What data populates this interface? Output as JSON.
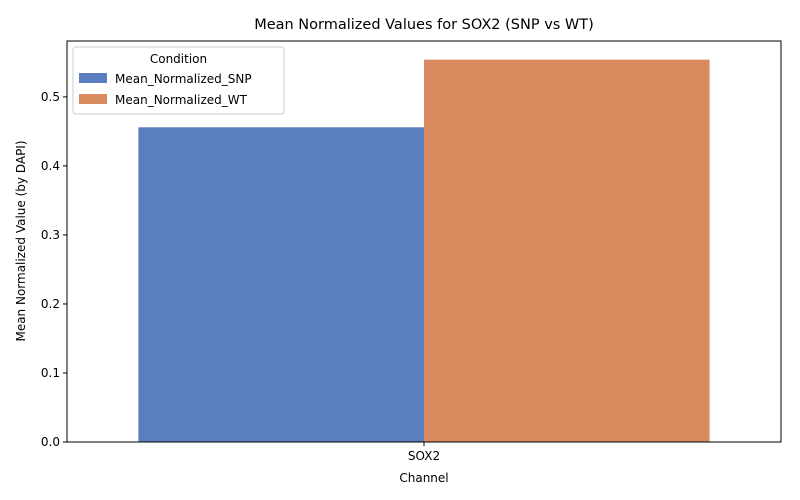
{
  "chart_data": {
    "type": "bar",
    "title": "Mean Normalized Values for SOX2 (SNP vs WT)",
    "xlabel": "Channel",
    "ylabel": "Mean Normalized Value (by DAPI)",
    "categories": [
      "SOX2"
    ],
    "series": [
      {
        "name": "Mean_Normalized_SNP",
        "values": [
          0.456
        ],
        "color": "#5b7ec0"
      },
      {
        "name": "Mean_Normalized_WT",
        "values": [
          0.554
        ],
        "color": "#d98b5f"
      }
    ],
    "ylim": [
      0,
      0.581
    ],
    "yticks": [
      "0.0",
      "0.1",
      "0.2",
      "0.3",
      "0.4",
      "0.5"
    ],
    "legend": {
      "title": "Condition",
      "position": "top-left"
    },
    "grid": false
  }
}
